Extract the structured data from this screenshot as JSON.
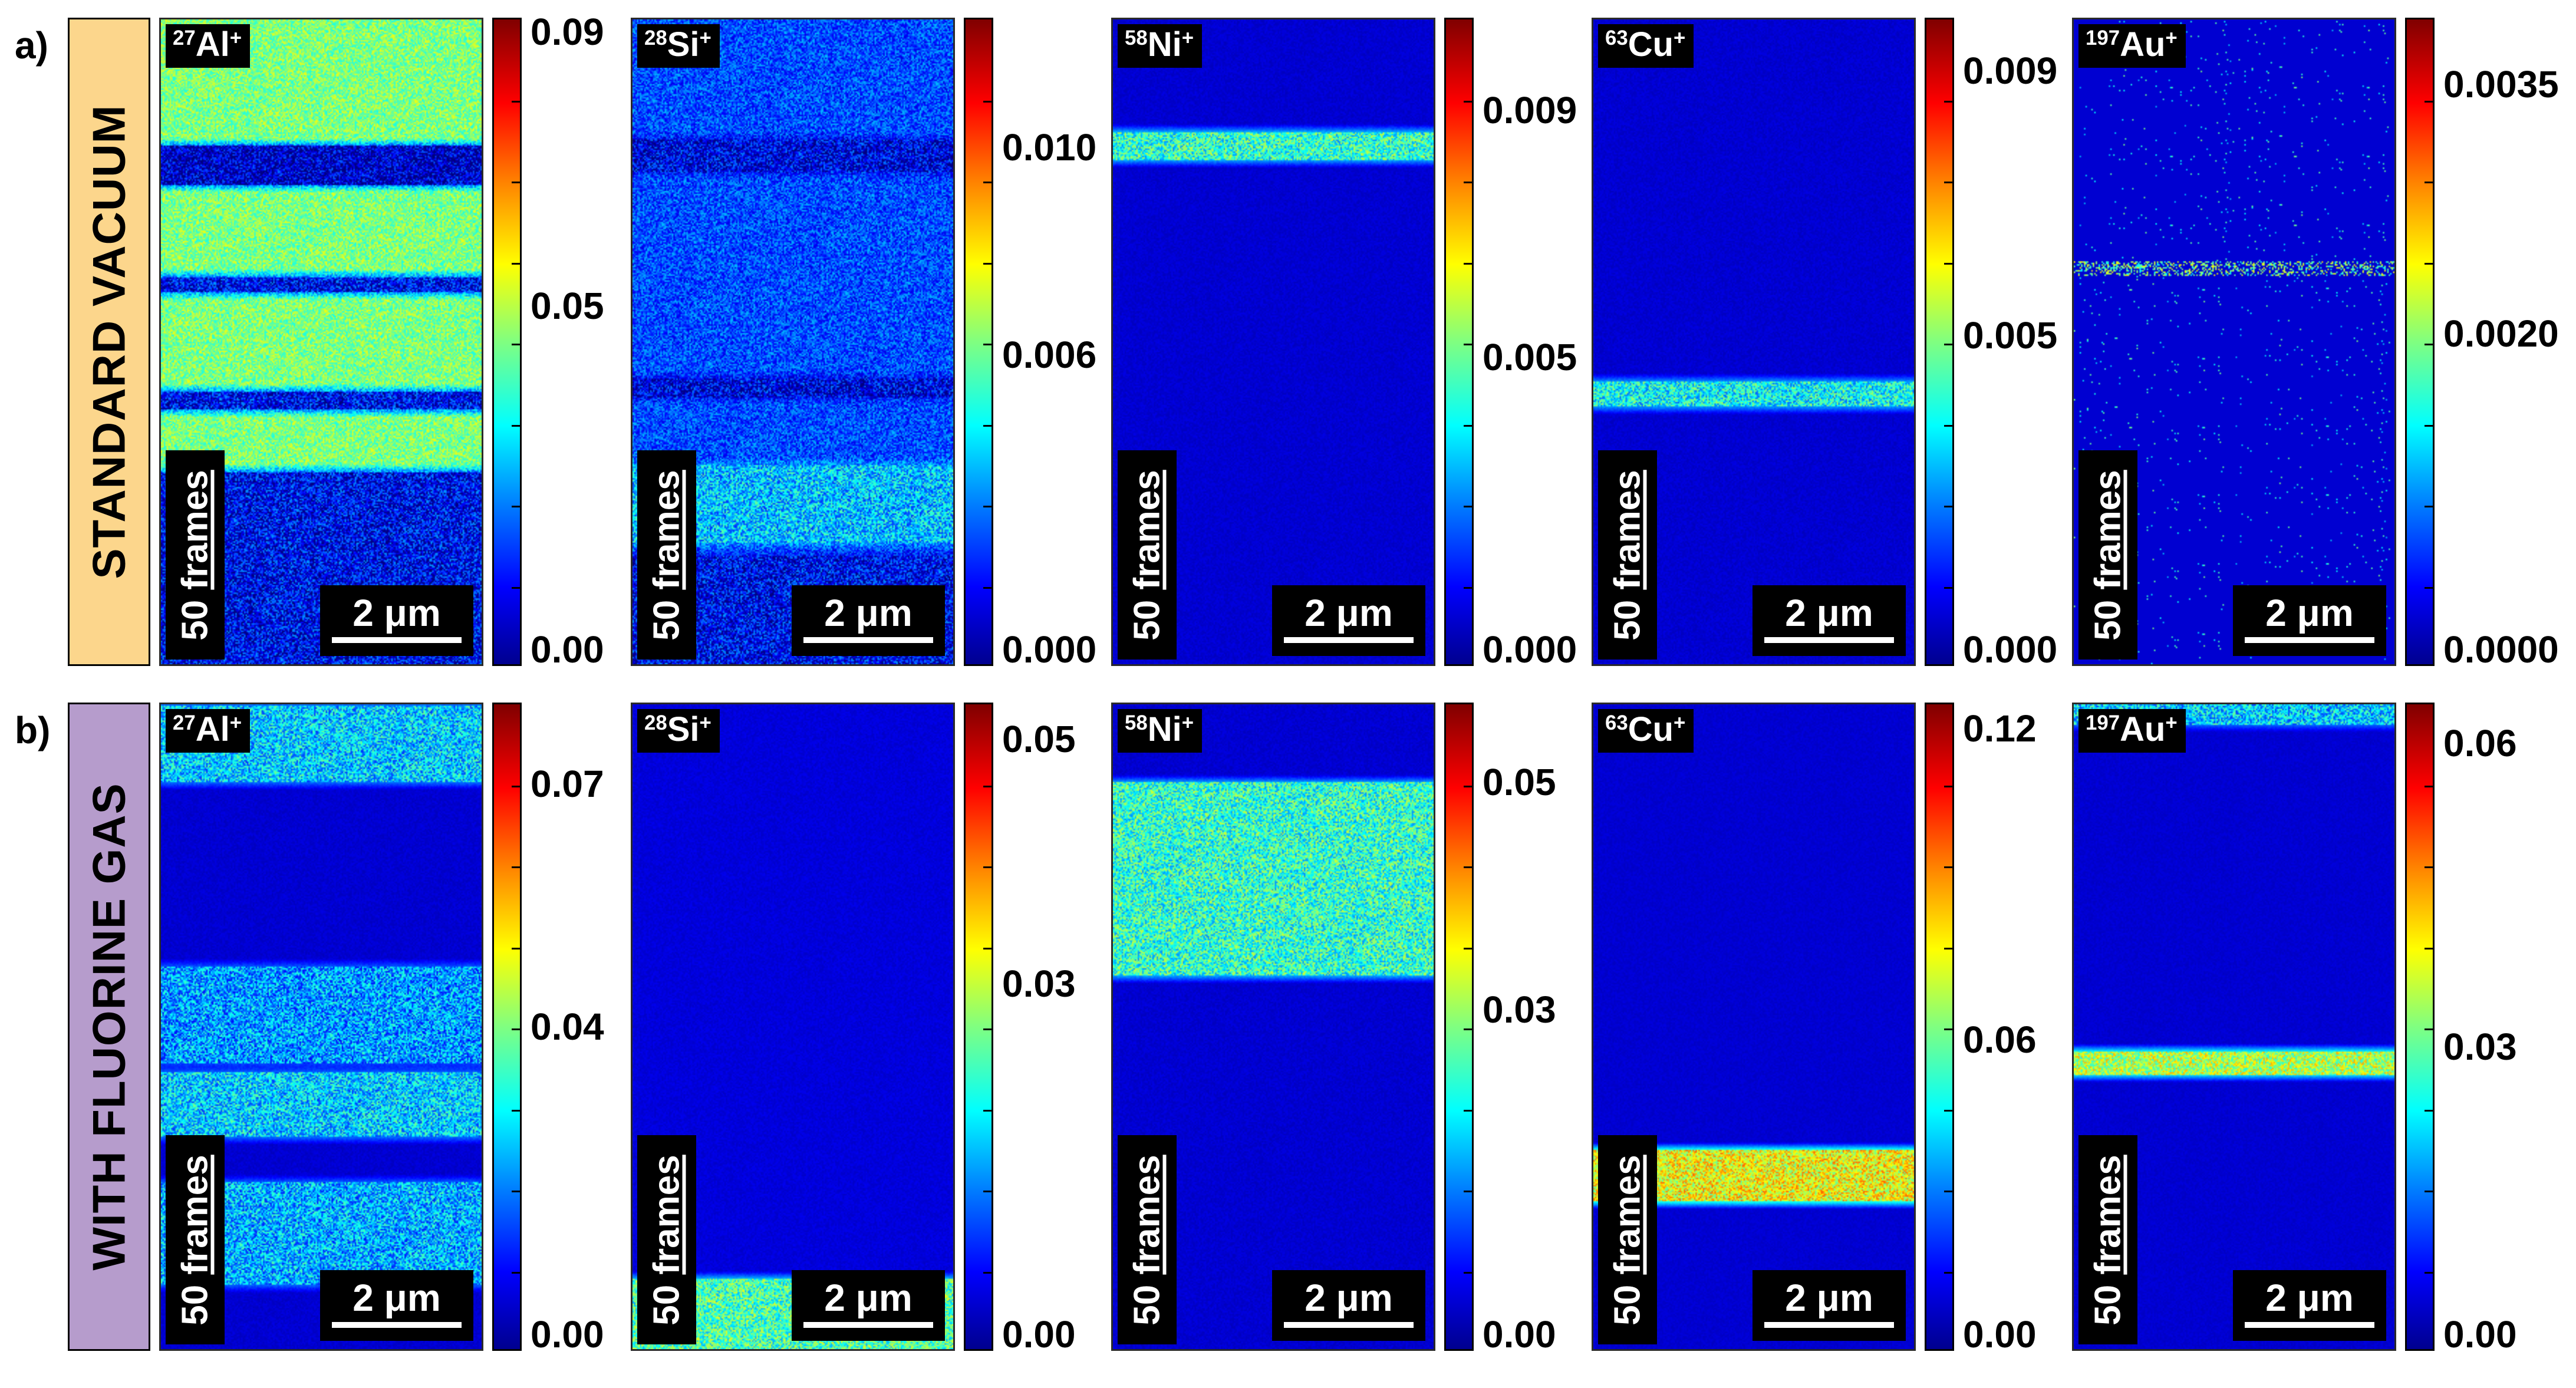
{
  "rows": [
    {
      "letter": "a)",
      "label": "STANDARD VACUUM",
      "label_color": "#fcd68c",
      "panels": [
        {
          "mass": "27",
          "element": "Al",
          "charge": "+",
          "frames": "50",
          "frames_unit": "frames",
          "scale": "2 μm",
          "colorbar": {
            "max": 0.09,
            "ticks": [
              {
                "v": 0.09,
                "label": "0.09"
              },
              {
                "v": 0.05,
                "label": "0.05"
              },
              {
                "v": 0.0,
                "label": "0.00"
              }
            ]
          },
          "map": {
            "bg": 0.5,
            "noise": 0.22,
            "bands": [
              {
                "c": 0.225,
                "w": 0.03,
                "v": 0.07
              },
              {
                "c": 0.41,
                "w": 0.012,
                "v": 0.12
              },
              {
                "c": 0.59,
                "w": 0.014,
                "v": 0.12
              },
              {
                "c": 0.85,
                "w": 0.15,
                "v": 0.12
              }
            ]
          }
        },
        {
          "mass": "28",
          "element": "Si",
          "charge": "+",
          "frames": "50",
          "frames_unit": "frames",
          "scale": "2 μm",
          "colorbar": {
            "max": 0.0125,
            "ticks": [
              {
                "v": 0.01,
                "label": "0.010"
              },
              {
                "v": 0.006,
                "label": "0.006"
              },
              {
                "v": 0.0,
                "label": "0.000"
              }
            ]
          },
          "map": {
            "bg": 0.2,
            "noise": 0.22,
            "bands": [
              {
                "c": 0.21,
                "w": 0.025,
                "v": 0.1
              },
              {
                "c": 0.57,
                "w": 0.015,
                "v": 0.1
              },
              {
                "c": 0.75,
                "w": 0.06,
                "v": 0.32
              },
              {
                "c": 0.92,
                "w": 0.09,
                "v": 0.12
              }
            ]
          }
        },
        {
          "mass": "58",
          "element": "Ni",
          "charge": "+",
          "frames": "50",
          "frames_unit": "frames",
          "scale": "2 μm",
          "colorbar": {
            "max": 0.0105,
            "ticks": [
              {
                "v": 0.009,
                "label": "0.009"
              },
              {
                "v": 0.005,
                "label": "0.005"
              },
              {
                "v": 0.0,
                "label": "0.000"
              }
            ]
          },
          "map": {
            "bg": 0.08,
            "noise": 0.04,
            "bands": [
              {
                "c": 0.195,
                "w": 0.022,
                "v": 0.42
              }
            ]
          }
        },
        {
          "mass": "63",
          "element": "Cu",
          "charge": "+",
          "frames": "50",
          "frames_unit": "frames",
          "scale": "2 μm",
          "colorbar": {
            "max": 0.0098,
            "ticks": [
              {
                "v": 0.009,
                "label": "0.009"
              },
              {
                "v": 0.005,
                "label": "0.005"
              },
              {
                "v": 0.0,
                "label": "0.000"
              }
            ]
          },
          "map": {
            "bg": 0.08,
            "noise": 0.04,
            "bands": [
              {
                "c": 0.58,
                "w": 0.02,
                "v": 0.38
              }
            ]
          }
        },
        {
          "mass": "197",
          "element": "Au",
          "charge": "+",
          "frames": "50",
          "frames_unit": "frames",
          "scale": "2 μm",
          "colorbar": {
            "max": 0.0039,
            "ticks": [
              {
                "v": 0.0035,
                "label": "0.0035"
              },
              {
                "v": 0.002,
                "label": "0.0020"
              },
              {
                "v": 0.0,
                "label": "0.0000"
              }
            ]
          },
          "map": {
            "bg": 0.08,
            "noise": 0.0,
            "sparse": 0.012,
            "bands": [
              {
                "c": 0.385,
                "w": 0.012,
                "v": 0.45,
                "sparse": 0.35
              }
            ]
          }
        }
      ]
    },
    {
      "letter": "b)",
      "label": "WITH FLUORINE GAS",
      "label_color": "#b69ccc",
      "panels": [
        {
          "mass": "27",
          "element": "Al",
          "charge": "+",
          "frames": "50",
          "frames_unit": "frames",
          "scale": "2 μm",
          "colorbar": {
            "max": 0.08,
            "ticks": [
              {
                "v": 0.07,
                "label": "0.07"
              },
              {
                "v": 0.04,
                "label": "0.04"
              },
              {
                "v": 0.0,
                "label": "0.00"
              }
            ]
          },
          "map": {
            "bg": 0.08,
            "noise": 0.04,
            "bands": [
              {
                "c": 0.06,
                "w": 0.06,
                "v": 0.33
              },
              {
                "c": 0.48,
                "w": 0.075,
                "v": 0.28
              },
              {
                "c": 0.62,
                "w": 0.05,
                "v": 0.33
              },
              {
                "c": 0.82,
                "w": 0.08,
                "v": 0.3
              }
            ]
          }
        },
        {
          "mass": "28",
          "element": "Si",
          "charge": "+",
          "frames": "50",
          "frames_unit": "frames",
          "scale": "2 μm",
          "colorbar": {
            "max": 0.053,
            "ticks": [
              {
                "v": 0.05,
                "label": "0.05"
              },
              {
                "v": 0.03,
                "label": "0.03"
              },
              {
                "v": 0.0,
                "label": "0.00"
              }
            ]
          },
          "map": {
            "bg": 0.09,
            "noise": 0.04,
            "bands": [
              {
                "c": 0.95,
                "w": 0.06,
                "v": 0.45
              }
            ]
          }
        },
        {
          "mass": "58",
          "element": "Ni",
          "charge": "+",
          "frames": "50",
          "frames_unit": "frames",
          "scale": "2 μm",
          "colorbar": {
            "max": 0.057,
            "ticks": [
              {
                "v": 0.05,
                "label": "0.05"
              },
              {
                "v": 0.03,
                "label": "0.03"
              },
              {
                "v": 0.0,
                "label": "0.00"
              }
            ]
          },
          "map": {
            "bg": 0.08,
            "noise": 0.04,
            "bands": [
              {
                "c": 0.27,
                "w": 0.15,
                "v": 0.42
              }
            ]
          }
        },
        {
          "mass": "63",
          "element": "Cu",
          "charge": "+",
          "frames": "50",
          "frames_unit": "frames",
          "scale": "2 μm",
          "colorbar": {
            "max": 0.125,
            "ticks": [
              {
                "v": 0.12,
                "label": "0.12"
              },
              {
                "v": 0.06,
                "label": "0.06"
              },
              {
                "v": 0.0,
                "label": "0.00"
              }
            ]
          },
          "map": {
            "bg": 0.08,
            "noise": 0.03,
            "bands": [
              {
                "c": 0.73,
                "w": 0.04,
                "v": 0.62
              }
            ]
          }
        },
        {
          "mass": "197",
          "element": "Au",
          "charge": "+",
          "frames": "50",
          "frames_unit": "frames",
          "scale": "2 μm",
          "colorbar": {
            "max": 0.064,
            "ticks": [
              {
                "v": 0.06,
                "label": "0.06"
              },
              {
                "v": 0.03,
                "label": "0.03"
              },
              {
                "v": 0.0,
                "label": "0.00"
              }
            ]
          },
          "map": {
            "bg": 0.08,
            "noise": 0.03,
            "bands": [
              {
                "c": 0.01,
                "w": 0.02,
                "v": 0.33
              },
              {
                "c": 0.555,
                "w": 0.018,
                "v": 0.55
              }
            ]
          }
        }
      ]
    }
  ]
}
